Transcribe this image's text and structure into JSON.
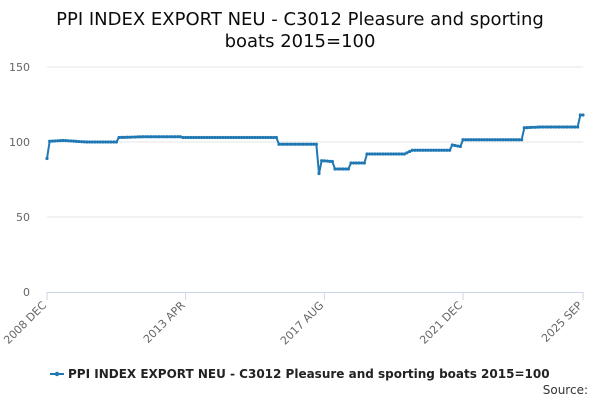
{
  "chart_data": {
    "type": "line",
    "title_line1": "PPI INDEX EXPORT NEU - C3012 Pleasure and sporting",
    "title_line2": "boats 2015=100",
    "y_ticks": [
      "0",
      "50",
      "100",
      "150"
    ],
    "ylim": [
      0,
      150
    ],
    "x_ticks": [
      "2008 DEC",
      "2013 APR",
      "2017 AUG",
      "2021 DEC",
      "2025 SEP"
    ],
    "grid": true,
    "legend_position": "bottom",
    "source_label": "Source:",
    "series": [
      {
        "name": "PPI INDEX EXPORT NEU - C3012 Pleasure and sporting boats 2015=100",
        "color": "#1f78b4",
        "segments": [
          [
            "2008-12",
            89
          ],
          [
            "2009-01",
            100.5
          ],
          [
            "2009-06",
            101
          ],
          [
            "2010-03",
            100
          ],
          [
            "2011-02",
            100
          ],
          [
            "2011-03",
            103
          ],
          [
            "2012-01",
            103.5
          ],
          [
            "2013-02",
            103.5
          ],
          [
            "2013-03",
            103
          ],
          [
            "2016-02",
            103
          ],
          [
            "2016-03",
            98.5
          ],
          [
            "2017-05",
            98.5
          ],
          [
            "2017-06",
            79
          ],
          [
            "2017-07",
            87.5
          ],
          [
            "2017-11",
            87
          ],
          [
            "2017-12",
            82
          ],
          [
            "2018-05",
            82
          ],
          [
            "2018-06",
            86
          ],
          [
            "2018-11",
            86
          ],
          [
            "2018-12",
            92
          ],
          [
            "2020-02",
            92
          ],
          [
            "2020-05",
            94.5
          ],
          [
            "2021-07",
            94.5
          ],
          [
            "2021-08",
            98
          ],
          [
            "2021-11",
            97
          ],
          [
            "2021-12",
            101.5
          ],
          [
            "2023-10",
            101.5
          ],
          [
            "2023-11",
            109.5
          ],
          [
            "2024-05",
            110
          ],
          [
            "2025-07",
            110
          ],
          [
            "2025-08",
            118
          ],
          [
            "2025-09",
            118
          ]
        ]
      }
    ]
  }
}
